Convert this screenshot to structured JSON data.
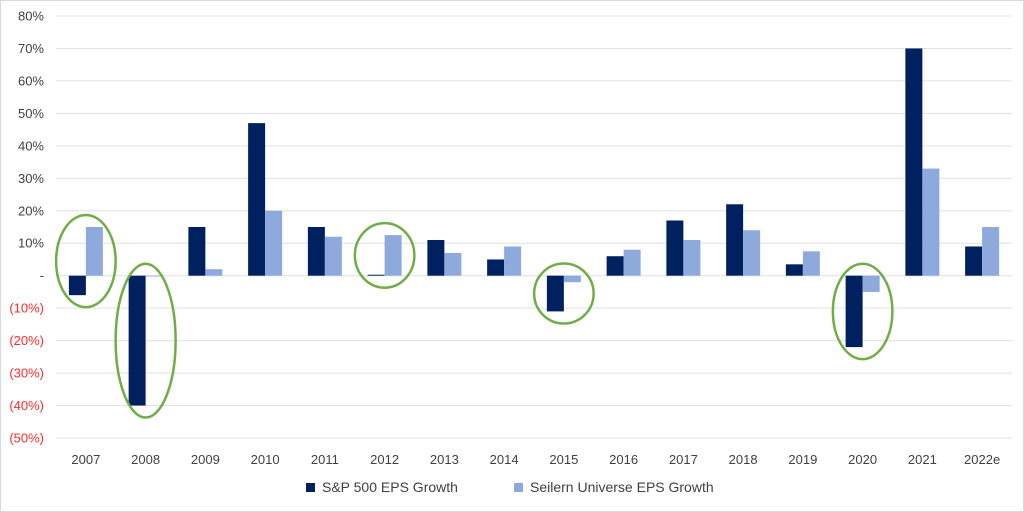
{
  "chart_data": {
    "type": "bar",
    "categories": [
      "2007",
      "2008",
      "2009",
      "2010",
      "2011",
      "2012",
      "2013",
      "2014",
      "2015",
      "2016",
      "2017",
      "2018",
      "2019",
      "2020",
      "2021",
      "2022e"
    ],
    "series": [
      {
        "name": "S&P 500 EPS Growth",
        "color": "#002060",
        "values": [
          -6,
          -40,
          15,
          47,
          15,
          0.3,
          11,
          5,
          -11,
          6,
          17,
          22,
          3.5,
          -22,
          70,
          9
        ]
      },
      {
        "name": "Seilern Universe EPS Growth",
        "color": "#8eaadc",
        "values": [
          15,
          0,
          2,
          20,
          12,
          12.5,
          7,
          9,
          -2,
          8,
          11,
          14,
          7.5,
          -5,
          33,
          15
        ]
      }
    ],
    "ylim": [
      -50,
      80
    ],
    "yticks": [
      {
        "value": 80,
        "label": "80%"
      },
      {
        "value": 70,
        "label": "70%"
      },
      {
        "value": 60,
        "label": "60%"
      },
      {
        "value": 50,
        "label": "50%"
      },
      {
        "value": 40,
        "label": "40%"
      },
      {
        "value": 30,
        "label": "30%"
      },
      {
        "value": 20,
        "label": "20%"
      },
      {
        "value": 10,
        "label": "10%"
      },
      {
        "value": 0,
        "label": "-"
      },
      {
        "value": -10,
        "label": "(10%)"
      },
      {
        "value": -20,
        "label": "(20%)"
      },
      {
        "value": -30,
        "label": "(30%)"
      },
      {
        "value": -40,
        "label": "(40%)"
      },
      {
        "value": -50,
        "label": "(50%)"
      }
    ],
    "negative_tick_color": "#ff2a2a",
    "grid": true,
    "legend_position": "bottom",
    "highlighted_categories": [
      "2007",
      "2008",
      "2012",
      "2015",
      "2020"
    ],
    "highlight_color": "#70ad47"
  }
}
